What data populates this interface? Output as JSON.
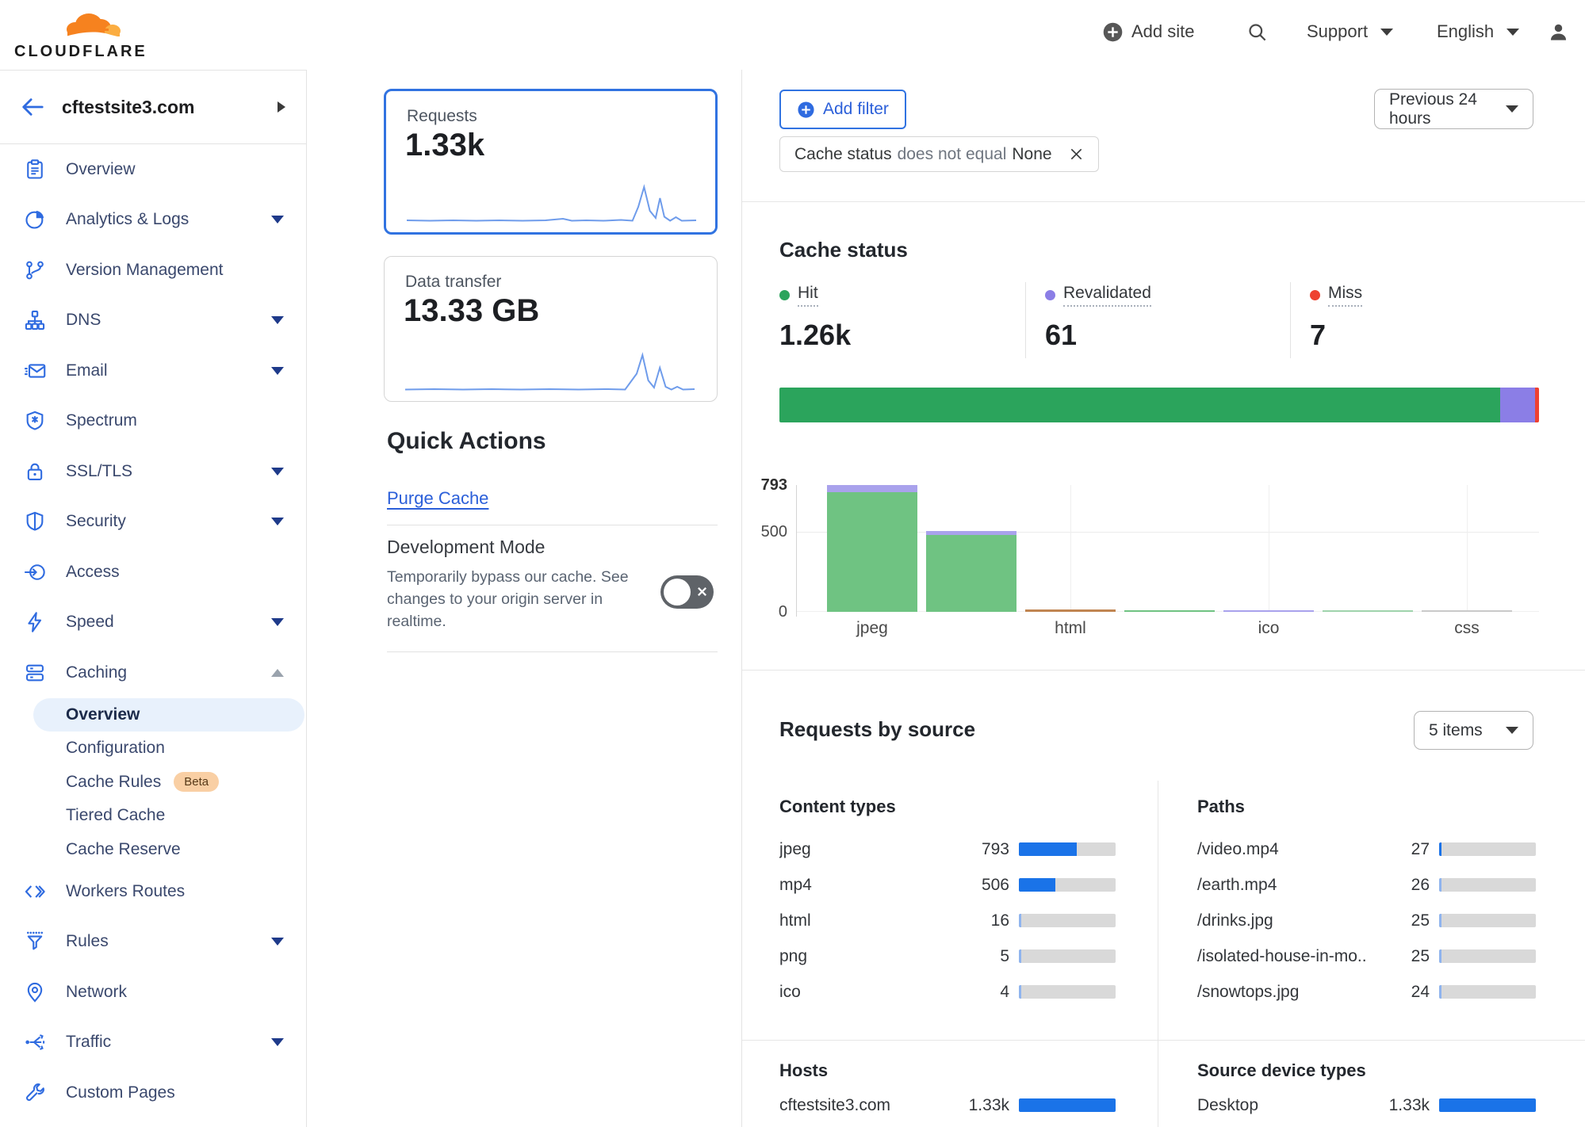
{
  "colors": {
    "accent_blue": "#2f6be0",
    "link_blue": "#2b5fd9",
    "hit_green": "#2ba45c",
    "revalidated_purple": "#8b7ee6",
    "miss_red": "#ee4130",
    "meter_blue": "#1a73e8",
    "meter_blue_light": "#8fb4ee",
    "meter_track": "#d9d9d9",
    "sparkline_blue": "#6f9ceb",
    "selected_card_border": "#3173e1",
    "logo_orange": "#f6821f",
    "logo_orange_light": "#fbad41"
  },
  "header": {
    "brand": "CLOUDFLARE",
    "add_site_label": "Add site",
    "support_label": "Support",
    "language_label": "English"
  },
  "sidebar": {
    "site_name": "cftestsite3.com",
    "items": [
      {
        "label": "Overview",
        "icon": "clipboard-icon",
        "caret": ""
      },
      {
        "label": "Analytics & Logs",
        "icon": "pie-chart-icon",
        "caret": "down"
      },
      {
        "label": "Version Management",
        "icon": "git-branch-icon",
        "caret": ""
      },
      {
        "label": "DNS",
        "icon": "dns-tree-icon",
        "caret": "down"
      },
      {
        "label": "Email",
        "icon": "email-icon",
        "caret": "down"
      },
      {
        "label": "Spectrum",
        "icon": "spectrum-shield-icon",
        "caret": ""
      },
      {
        "label": "SSL/TLS",
        "icon": "lock-icon",
        "caret": "down"
      },
      {
        "label": "Security",
        "icon": "shield-icon",
        "caret": "down"
      },
      {
        "label": "Access",
        "icon": "access-icon",
        "caret": ""
      },
      {
        "label": "Speed",
        "icon": "bolt-icon",
        "caret": "down"
      },
      {
        "label": "Caching",
        "icon": "server-stack-icon",
        "caret": "up"
      }
    ],
    "caching_subitems": [
      {
        "label": "Overview",
        "active": true,
        "badge": ""
      },
      {
        "label": "Configuration",
        "active": false,
        "badge": ""
      },
      {
        "label": "Cache Rules",
        "active": false,
        "badge": "Beta"
      },
      {
        "label": "Tiered Cache",
        "active": false,
        "badge": ""
      },
      {
        "label": "Cache Reserve",
        "active": false,
        "badge": ""
      }
    ],
    "items_after": [
      {
        "label": "Workers Routes",
        "icon": "code-icon",
        "caret": ""
      },
      {
        "label": "Rules",
        "icon": "funnel-icon",
        "caret": "down"
      },
      {
        "label": "Network",
        "icon": "pin-icon",
        "caret": ""
      },
      {
        "label": "Traffic",
        "icon": "traffic-icon",
        "caret": "down"
      },
      {
        "label": "Custom Pages",
        "icon": "wrench-icon",
        "caret": ""
      }
    ]
  },
  "summary_cards": {
    "requests": {
      "title": "Requests",
      "value": "1.33k",
      "selected": true,
      "sparkline": [
        [
          0,
          94
        ],
        [
          8,
          95
        ],
        [
          16,
          94
        ],
        [
          24,
          95
        ],
        [
          32,
          94
        ],
        [
          40,
          95
        ],
        [
          48,
          94
        ],
        [
          54,
          90
        ],
        [
          57,
          95
        ],
        [
          62,
          94
        ],
        [
          68,
          95
        ],
        [
          74,
          93
        ],
        [
          78,
          95
        ],
        [
          80,
          60
        ],
        [
          82,
          10
        ],
        [
          84,
          70
        ],
        [
          86,
          88
        ],
        [
          87.5,
          38
        ],
        [
          89,
          85
        ],
        [
          91,
          95
        ],
        [
          93,
          86
        ],
        [
          95,
          95
        ],
        [
          100,
          94
        ]
      ]
    },
    "data_transfer": {
      "title": "Data transfer",
      "value": "13.33 GB",
      "selected": false,
      "sparkline": [
        [
          0,
          95
        ],
        [
          10,
          94
        ],
        [
          20,
          95
        ],
        [
          30,
          94
        ],
        [
          40,
          95
        ],
        [
          50,
          94
        ],
        [
          60,
          95
        ],
        [
          70,
          94
        ],
        [
          76,
          95
        ],
        [
          80,
          55
        ],
        [
          82,
          8
        ],
        [
          84,
          72
        ],
        [
          86,
          90
        ],
        [
          88,
          40
        ],
        [
          90,
          88
        ],
        [
          92,
          95
        ],
        [
          94,
          88
        ],
        [
          96,
          95
        ],
        [
          100,
          94
        ]
      ]
    }
  },
  "quick_actions": {
    "title": "Quick Actions",
    "purge_cache_label": "Purge Cache",
    "development_mode": {
      "title": "Development Mode",
      "description": "Temporarily bypass our cache. See changes to your origin server in realtime.",
      "enabled": false
    }
  },
  "filters": {
    "add_filter_label": "Add filter",
    "chip": {
      "field": "Cache status",
      "operator": "does not equal",
      "value": "None"
    },
    "time_range_label": "Previous 24 hours"
  },
  "cache_status": {
    "title": "Cache status",
    "stats": [
      {
        "label": "Hit",
        "value": "1.26k",
        "color": "#2ba45c"
      },
      {
        "label": "Revalidated",
        "value": "61",
        "color": "#8b7ee6"
      },
      {
        "label": "Miss",
        "value": "7",
        "color": "#ee4130"
      }
    ],
    "distribution": [
      [
        1260,
        "#2ba45c"
      ],
      [
        61,
        "#8b7ee6"
      ],
      [
        7,
        "#ee4130"
      ]
    ]
  },
  "chart_data": {
    "type": "bar",
    "y_ticks": [
      0,
      500,
      793
    ],
    "y_max": 793,
    "grid": true,
    "legend_position": "none",
    "x_tick_labels": [
      "jpeg",
      "html",
      "ico",
      "css"
    ],
    "bars": [
      {
        "label": "jpeg",
        "total": 793,
        "segments": [
          [
            748,
            "#6fc382"
          ],
          [
            45,
            "#a9a2ec"
          ]
        ]
      },
      {
        "label": "",
        "total": 506,
        "segments": [
          [
            481,
            "#6fc382"
          ],
          [
            25,
            "#a9a2ec"
          ]
        ]
      },
      {
        "label": "html",
        "total": 16,
        "segments": [
          [
            16,
            "#c08552"
          ]
        ]
      },
      {
        "label": "",
        "total": 5,
        "segments": [
          [
            5,
            "#6fc382"
          ]
        ]
      },
      {
        "label": "ico",
        "total": 4,
        "segments": [
          [
            4,
            "#a9a2ec"
          ]
        ]
      },
      {
        "label": "",
        "total": 2,
        "segments": [
          [
            2,
            "#9fd3ac"
          ]
        ]
      },
      {
        "label": "css",
        "total": 2,
        "segments": [
          [
            2,
            "#c9c9c9"
          ]
        ]
      }
    ]
  },
  "requests_by_source": {
    "title": "Requests by source",
    "items_select_label": "5 items",
    "total": 1328,
    "content_types": {
      "title": "Content types",
      "rows": [
        {
          "label": "jpeg",
          "value": 793,
          "display": "793"
        },
        {
          "label": "mp4",
          "value": 506,
          "display": "506"
        },
        {
          "label": "html",
          "value": 16,
          "display": "16"
        },
        {
          "label": "png",
          "value": 5,
          "display": "5"
        },
        {
          "label": "ico",
          "value": 4,
          "display": "4"
        }
      ]
    },
    "paths": {
      "title": "Paths",
      "rows": [
        {
          "label": "/video.mp4",
          "value": 27,
          "display": "27"
        },
        {
          "label": "/earth.mp4",
          "value": 26,
          "display": "26"
        },
        {
          "label": "/drinks.jpg",
          "value": 25,
          "display": "25"
        },
        {
          "label": "/isolated-house-in-mo...",
          "value": 25,
          "display": "25"
        },
        {
          "label": "/snowtops.jpg",
          "value": 24,
          "display": "24"
        }
      ]
    },
    "hosts": {
      "title": "Hosts",
      "rows": [
        {
          "label": "cftestsite3.com",
          "value": 1328,
          "display": "1.33k"
        }
      ]
    },
    "device_types": {
      "title": "Source device types",
      "rows": [
        {
          "label": "Desktop",
          "value": 1328,
          "display": "1.33k"
        }
      ]
    }
  }
}
